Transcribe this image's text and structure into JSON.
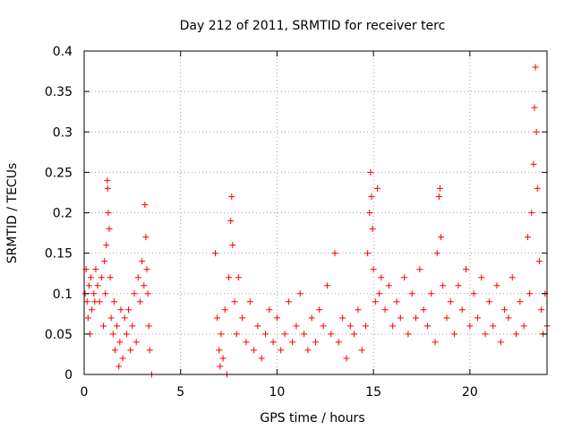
{
  "chart_data": {
    "type": "scatter",
    "title": "Day 212 of 2011, SRMTID for receiver terc",
    "xlabel": "GPS time / hours",
    "ylabel": "SRMTID / TECUs",
    "xlim": [
      0,
      24
    ],
    "ylim": [
      0,
      0.4
    ],
    "xticks": [
      0,
      5,
      10,
      15,
      20
    ],
    "xtick_labels": [
      "0",
      "5",
      "10",
      "15",
      "20"
    ],
    "yticks": [
      0,
      0.05,
      0.1,
      0.15,
      0.2,
      0.25,
      0.3,
      0.35,
      0.4
    ],
    "ytick_labels": [
      "0",
      "0.05",
      "0.1",
      "0.15",
      "0.2",
      "0.25",
      "0.3",
      "0.35",
      "0.4"
    ],
    "grid": true,
    "marker": "+",
    "series": [
      {
        "name": "SRMTID",
        "color": "#ff0000",
        "points": [
          [
            0.05,
            0.1
          ],
          [
            0.1,
            0.13
          ],
          [
            0.15,
            0.09
          ],
          [
            0.2,
            0.07
          ],
          [
            0.25,
            0.11
          ],
          [
            0.3,
            0.05
          ],
          [
            0.35,
            0.12
          ],
          [
            0.4,
            0.08
          ],
          [
            0.5,
            0.1
          ],
          [
            0.55,
            0.09
          ],
          [
            0.6,
            0.13
          ],
          [
            0.7,
            0.11
          ],
          [
            0.8,
            0.09
          ],
          [
            0.9,
            0.12
          ],
          [
            1.0,
            0.06
          ],
          [
            1.05,
            0.14
          ],
          [
            1.1,
            0.1
          ],
          [
            1.15,
            0.16
          ],
          [
            1.2,
            0.24
          ],
          [
            1.22,
            0.23
          ],
          [
            1.25,
            0.2
          ],
          [
            1.3,
            0.18
          ],
          [
            1.35,
            0.12
          ],
          [
            1.4,
            0.07
          ],
          [
            1.5,
            0.05
          ],
          [
            1.55,
            0.09
          ],
          [
            1.6,
            0.03
          ],
          [
            1.7,
            0.06
          ],
          [
            1.8,
            0.01
          ],
          [
            1.85,
            0.04
          ],
          [
            1.9,
            0.08
          ],
          [
            2.0,
            0.02
          ],
          [
            2.1,
            0.07
          ],
          [
            2.2,
            0.05
          ],
          [
            2.3,
            0.08
          ],
          [
            2.4,
            0.03
          ],
          [
            2.5,
            0.06
          ],
          [
            2.6,
            0.1
          ],
          [
            2.7,
            0.04
          ],
          [
            2.8,
            0.12
          ],
          [
            2.9,
            0.09
          ],
          [
            3.0,
            0.14
          ],
          [
            3.1,
            0.11
          ],
          [
            3.15,
            0.21
          ],
          [
            3.2,
            0.17
          ],
          [
            3.25,
            0.13
          ],
          [
            3.3,
            0.1
          ],
          [
            3.35,
            0.06
          ],
          [
            3.4,
            0.03
          ],
          [
            3.5,
            0.0
          ],
          [
            6.8,
            0.15
          ],
          [
            6.9,
            0.07
          ],
          [
            7.0,
            0.03
          ],
          [
            7.05,
            0.01
          ],
          [
            7.1,
            0.05
          ],
          [
            7.2,
            0.02
          ],
          [
            7.3,
            0.08
          ],
          [
            7.4,
            0.0
          ],
          [
            7.5,
            0.12
          ],
          [
            7.6,
            0.19
          ],
          [
            7.65,
            0.22
          ],
          [
            7.7,
            0.16
          ],
          [
            7.8,
            0.09
          ],
          [
            7.9,
            0.05
          ],
          [
            8.0,
            0.12
          ],
          [
            8.2,
            0.07
          ],
          [
            8.4,
            0.04
          ],
          [
            8.6,
            0.09
          ],
          [
            8.8,
            0.03
          ],
          [
            9.0,
            0.06
          ],
          [
            9.2,
            0.02
          ],
          [
            9.4,
            0.05
          ],
          [
            9.6,
            0.08
          ],
          [
            9.8,
            0.04
          ],
          [
            10.0,
            0.07
          ],
          [
            10.2,
            0.03
          ],
          [
            10.4,
            0.05
          ],
          [
            10.6,
            0.09
          ],
          [
            10.8,
            0.04
          ],
          [
            11.0,
            0.06
          ],
          [
            11.2,
            0.1
          ],
          [
            11.4,
            0.05
          ],
          [
            11.6,
            0.03
          ],
          [
            11.8,
            0.07
          ],
          [
            12.0,
            0.04
          ],
          [
            12.2,
            0.08
          ],
          [
            12.4,
            0.06
          ],
          [
            12.6,
            0.11
          ],
          [
            12.8,
            0.05
          ],
          [
            13.0,
            0.15
          ],
          [
            13.2,
            0.04
          ],
          [
            13.4,
            0.07
          ],
          [
            13.6,
            0.02
          ],
          [
            13.8,
            0.06
          ],
          [
            14.0,
            0.05
          ],
          [
            14.2,
            0.08
          ],
          [
            14.4,
            0.03
          ],
          [
            14.6,
            0.06
          ],
          [
            14.7,
            0.15
          ],
          [
            14.8,
            0.2
          ],
          [
            14.85,
            0.25
          ],
          [
            14.9,
            0.22
          ],
          [
            14.95,
            0.18
          ],
          [
            15.0,
            0.13
          ],
          [
            15.1,
            0.09
          ],
          [
            15.2,
            0.23
          ],
          [
            15.3,
            0.1
          ],
          [
            15.4,
            0.12
          ],
          [
            15.6,
            0.08
          ],
          [
            15.8,
            0.11
          ],
          [
            16.0,
            0.06
          ],
          [
            16.2,
            0.09
          ],
          [
            16.4,
            0.07
          ],
          [
            16.6,
            0.12
          ],
          [
            16.8,
            0.05
          ],
          [
            17.0,
            0.1
          ],
          [
            17.2,
            0.07
          ],
          [
            17.4,
            0.13
          ],
          [
            17.6,
            0.08
          ],
          [
            17.8,
            0.06
          ],
          [
            18.0,
            0.1
          ],
          [
            18.2,
            0.04
          ],
          [
            18.3,
            0.15
          ],
          [
            18.4,
            0.22
          ],
          [
            18.45,
            0.23
          ],
          [
            18.5,
            0.17
          ],
          [
            18.6,
            0.11
          ],
          [
            18.8,
            0.07
          ],
          [
            19.0,
            0.09
          ],
          [
            19.2,
            0.05
          ],
          [
            19.4,
            0.11
          ],
          [
            19.6,
            0.08
          ],
          [
            19.8,
            0.13
          ],
          [
            20.0,
            0.06
          ],
          [
            20.2,
            0.1
          ],
          [
            20.4,
            0.07
          ],
          [
            20.6,
            0.12
          ],
          [
            20.8,
            0.05
          ],
          [
            21.0,
            0.09
          ],
          [
            21.2,
            0.06
          ],
          [
            21.4,
            0.11
          ],
          [
            21.6,
            0.04
          ],
          [
            21.8,
            0.08
          ],
          [
            22.0,
            0.07
          ],
          [
            22.2,
            0.12
          ],
          [
            22.4,
            0.05
          ],
          [
            22.6,
            0.09
          ],
          [
            22.8,
            0.06
          ],
          [
            23.0,
            0.17
          ],
          [
            23.1,
            0.1
          ],
          [
            23.2,
            0.2
          ],
          [
            23.3,
            0.26
          ],
          [
            23.35,
            0.33
          ],
          [
            23.4,
            0.38
          ],
          [
            23.45,
            0.3
          ],
          [
            23.5,
            0.23
          ],
          [
            23.6,
            0.14
          ],
          [
            23.7,
            0.08
          ],
          [
            23.8,
            0.05
          ],
          [
            23.9,
            0.1
          ],
          [
            24.0,
            0.06
          ]
        ]
      }
    ]
  }
}
